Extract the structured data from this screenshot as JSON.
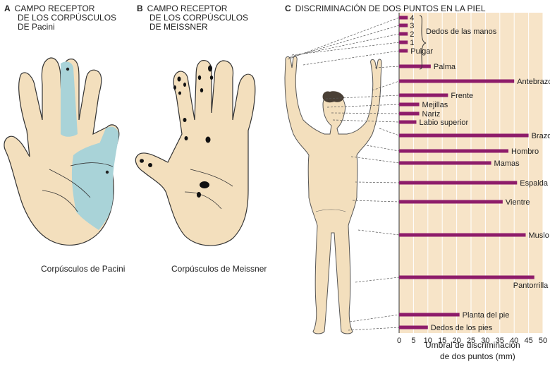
{
  "panel_a": {
    "letter": "A",
    "title_line1": "CAMPO RECEPTOR",
    "title_line2": "DE LOS CORPÚSCULOS",
    "title_line3": "DE Pacini",
    "caption": "Corpúsculos de Pacini",
    "field_color": "#a9d3d8",
    "skin_color": "#f3dfbd"
  },
  "panel_b": {
    "letter": "B",
    "title_line1": "CAMPO RECEPTOR",
    "title_line2": "DE LOS CORPÚSCULOS",
    "title_line3": "DE MEISSNER",
    "caption": "Corpúsculos de Meissner"
  },
  "panel_c": {
    "letter": "C",
    "title": "DISCRIMINACIÓN DE DOS PUNTOS EN LA PIEL",
    "fingers_bracket_label": "Dedos de las manos",
    "background_color": "#f7e4c8",
    "bar_color": "#8e1c6a"
  },
  "chart_data": {
    "type": "bar",
    "orientation": "horizontal",
    "xlabel": "Umbral de discriminación de dos puntos (mm)",
    "xlabel_line1": "Umbral de discriminación",
    "xlabel_line2": "de dos puntos (mm)",
    "xlim": [
      0,
      50
    ],
    "ticks": [
      "0",
      "5",
      "10",
      "15",
      "20",
      "25",
      "30",
      "35",
      "40",
      "45",
      "50"
    ],
    "categories": [
      "4",
      "3",
      "2",
      "1",
      "Pulgar",
      "Palma",
      "Antebrazo",
      "Frente",
      "Mejillas",
      "Nariz",
      "Labio superior",
      "Brazo",
      "Hombro",
      "Mamas",
      "Espalda",
      "Vientre",
      "Muslo",
      "Pantorrilla",
      "Planta del pie",
      "Dedos de los pies"
    ],
    "values": [
      3,
      3,
      3,
      3,
      3,
      11,
      40,
      17,
      7,
      7,
      6,
      45,
      38,
      32,
      41,
      36,
      44,
      47,
      21,
      10
    ]
  }
}
